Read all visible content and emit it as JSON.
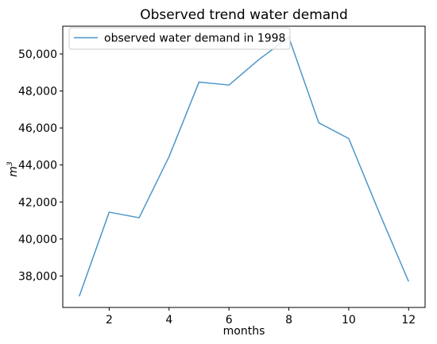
{
  "chart_data": {
    "type": "line",
    "title": "Observed trend water demand",
    "xlabel": "months",
    "ylabel": "m",
    "ylabel_superscript": "3",
    "x": [
      1,
      2,
      3,
      4,
      5,
      6,
      7,
      8,
      9,
      10,
      11,
      12
    ],
    "series": [
      {
        "name": "observed water demand in 1998",
        "color": "#4b96c8",
        "values": [
          36900,
          41450,
          41150,
          44450,
          48480,
          48320,
          49700,
          50900,
          46280,
          45430,
          41500,
          37700
        ]
      }
    ],
    "xlim": [
      0.45,
      12.55
    ],
    "ylim": [
      36300,
      51500
    ],
    "xticks": [
      2,
      4,
      6,
      8,
      10,
      12
    ],
    "yticks": [
      38000,
      40000,
      42000,
      44000,
      46000,
      48000,
      50000
    ],
    "ytick_labels": [
      "38,000",
      "40,000",
      "42,000",
      "44,000",
      "46,000",
      "48,000",
      "50,000"
    ],
    "grid": false,
    "legend_position": "upper-left"
  }
}
